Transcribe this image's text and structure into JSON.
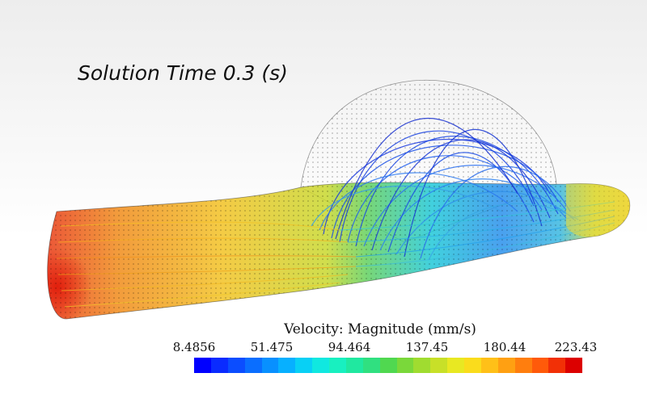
{
  "title": "Solution Time 0.3 (s)",
  "legend": {
    "title": "Velocity: Magnitude (mm/s)",
    "ticks": [
      "8.4856",
      "51.475",
      "94.464",
      "137.45",
      "180.44",
      "223.43"
    ],
    "colors": [
      "#0000ff",
      "#0a2bff",
      "#0b4dff",
      "#0a6eff",
      "#0890ff",
      "#07b0ff",
      "#08d0f5",
      "#10e8e0",
      "#18f0c0",
      "#20e8a0",
      "#30e080",
      "#50d850",
      "#7ad83a",
      "#a0dc30",
      "#c8e028",
      "#e8e822",
      "#fadc1c",
      "#ffc018",
      "#ffa012",
      "#ff7e0e",
      "#ff5a0a",
      "#f23006",
      "#dc0000"
    ]
  },
  "scene": {
    "description_colors": {
      "inlet": "#e83018",
      "mid": "#f4d020",
      "aneurysm": "#1e58e8",
      "outlet": "#e6d830",
      "mesh": "#000000"
    }
  }
}
